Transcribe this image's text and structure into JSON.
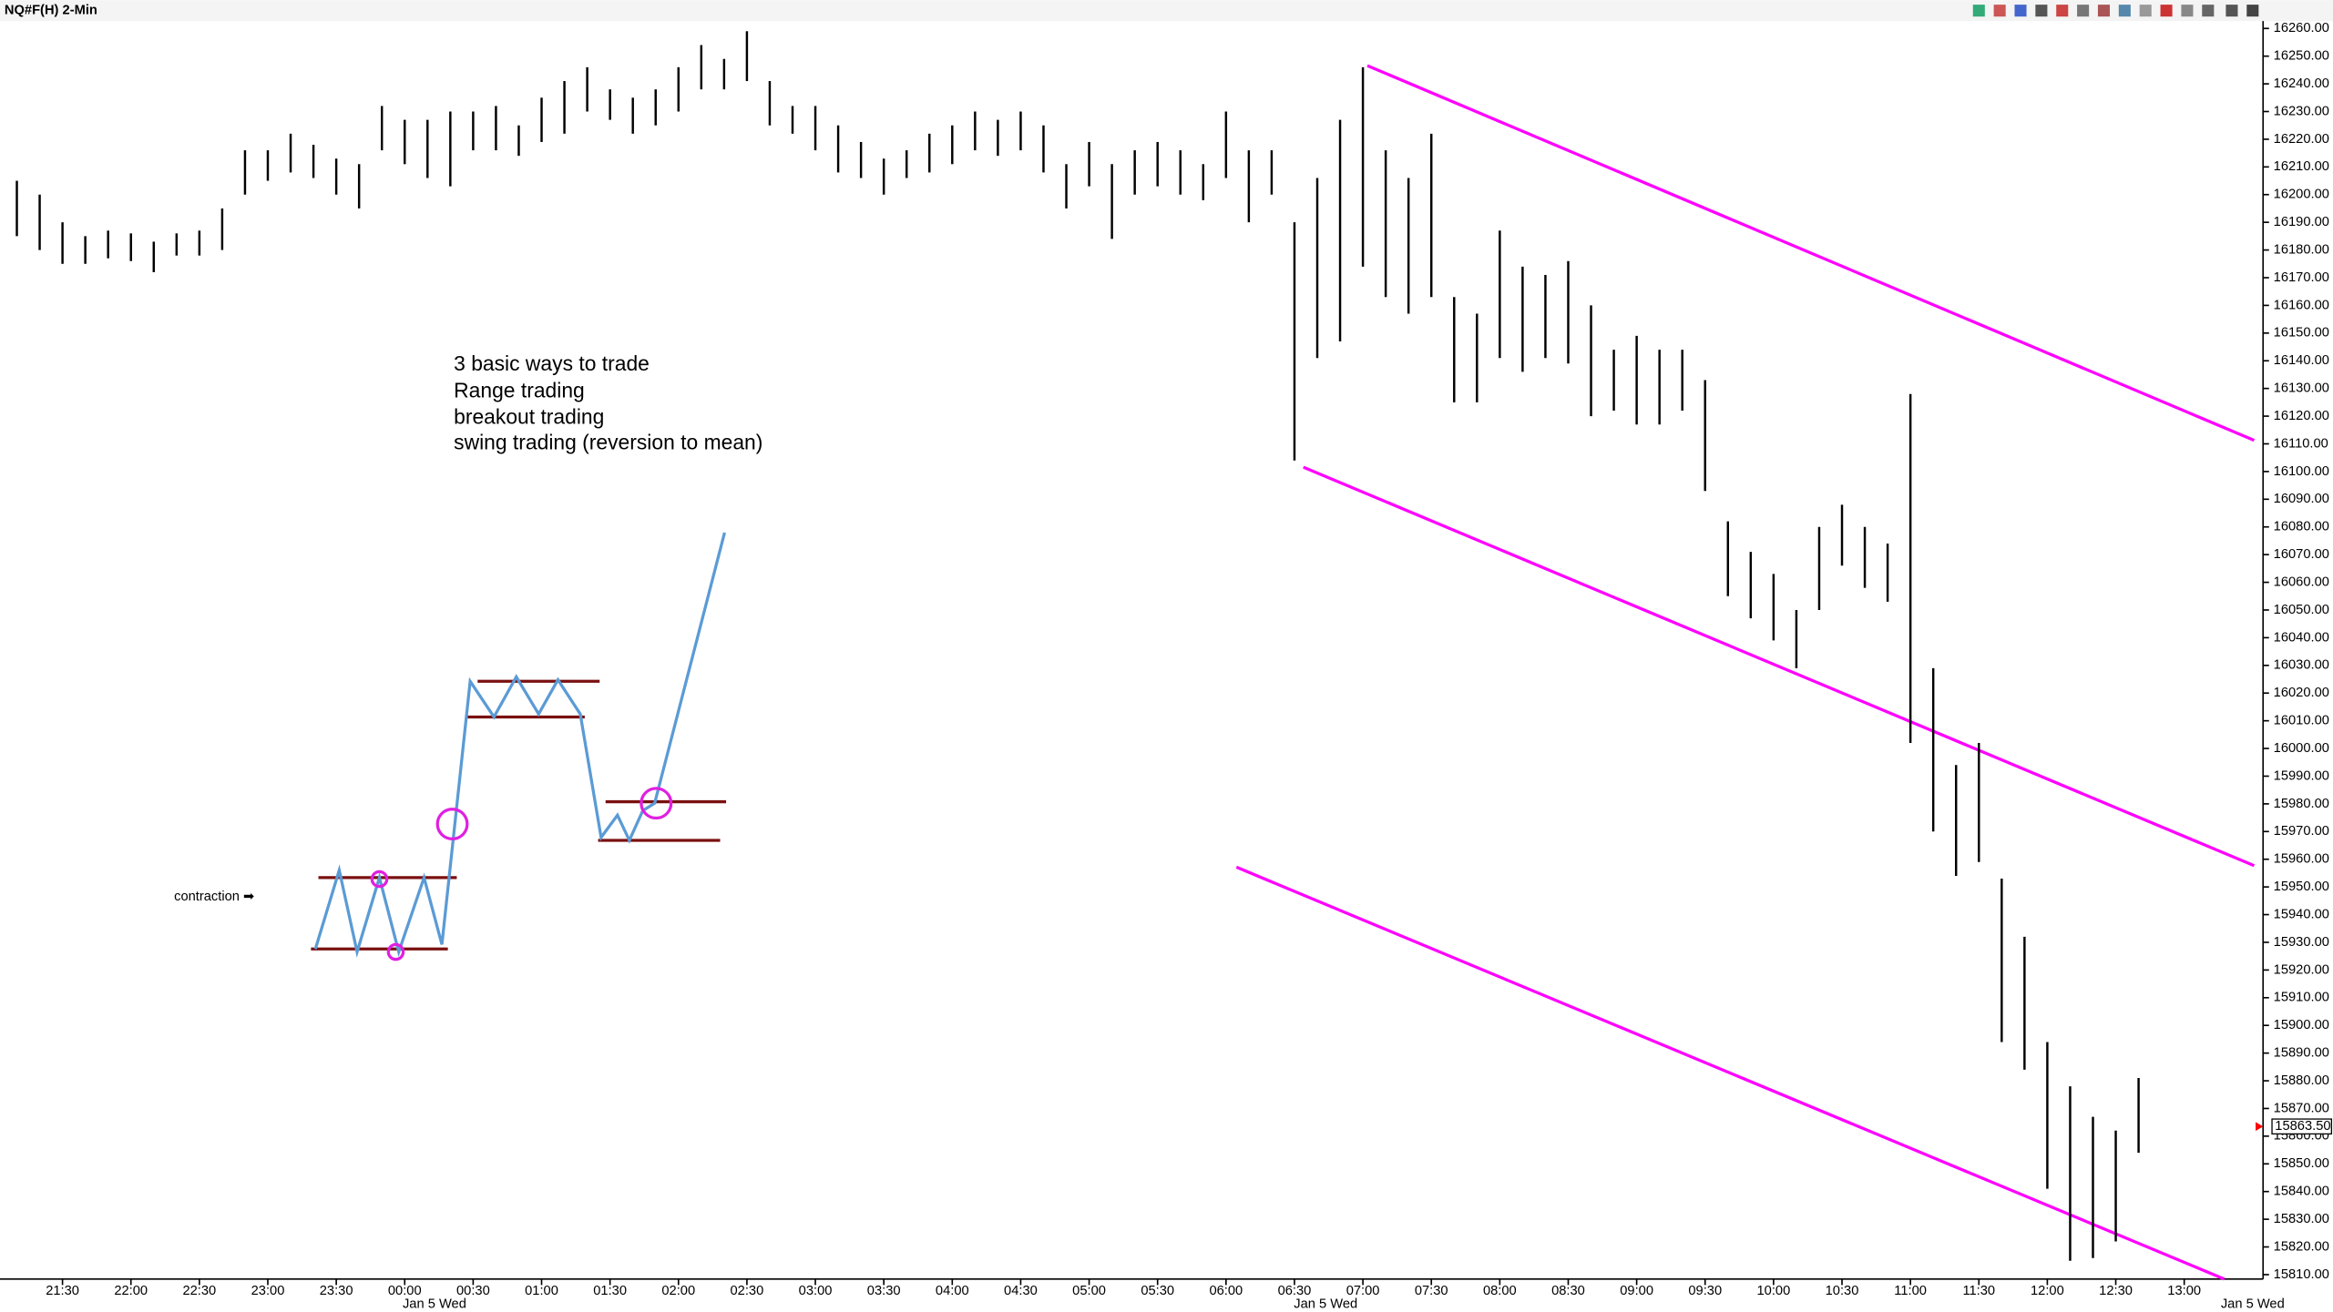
{
  "chart_data": {
    "type": "range-bar",
    "title": "NQ#F(H) 2-Min",
    "categories": [
      "21:10",
      "21:20",
      "21:30",
      "21:40",
      "21:50",
      "22:00",
      "22:10",
      "22:20",
      "22:30",
      "22:40",
      "22:50",
      "23:00",
      "23:10",
      "23:20",
      "23:30",
      "23:40",
      "23:50",
      "00:00",
      "00:10",
      "00:20",
      "00:30",
      "00:40",
      "00:50",
      "01:00",
      "01:10",
      "01:20",
      "01:30",
      "01:40",
      "01:50",
      "02:00",
      "02:10",
      "02:20",
      "02:30",
      "02:40",
      "02:50",
      "03:00",
      "03:10",
      "03:20",
      "03:30",
      "03:40",
      "03:50",
      "04:00",
      "04:10",
      "04:20",
      "04:30",
      "04:40",
      "04:50",
      "05:00",
      "05:10",
      "05:20",
      "05:30",
      "05:40",
      "05:50",
      "06:00",
      "06:10",
      "06:20",
      "06:30",
      "06:40",
      "06:50",
      "07:00",
      "07:10",
      "07:20",
      "07:30",
      "07:40",
      "07:50",
      "08:00",
      "08:10",
      "08:20",
      "08:30",
      "08:40",
      "08:50",
      "09:00",
      "09:10",
      "09:20",
      "09:30",
      "09:40",
      "09:50",
      "10:00",
      "10:10",
      "10:20",
      "10:30",
      "10:40",
      "10:50",
      "11:00",
      "11:10",
      "11:20",
      "11:30",
      "11:40",
      "11:50",
      "12:00",
      "12:10",
      "12:20",
      "12:30",
      "12:40"
    ],
    "high": [
      16205,
      16200,
      16190,
      16185,
      16187,
      16186,
      16183,
      16186,
      16187,
      16195,
      16216,
      16216,
      16222,
      16218,
      16213,
      16211,
      16232,
      16227,
      16227,
      16230,
      16230,
      16232,
      16225,
      16235,
      16241,
      16246,
      16238,
      16235,
      16238,
      16246,
      16254,
      16249,
      16259,
      16241,
      16232,
      16232,
      16225,
      16219,
      16213,
      16216,
      16222,
      16225,
      16230,
      16227,
      16230,
      16225,
      16211,
      16219,
      16211,
      16216,
      16219,
      16216,
      16211,
      16230,
      16216,
      16216,
      16190,
      16206,
      16227,
      16246,
      16216,
      16206,
      16222,
      16163,
      16157,
      16187,
      16174,
      16171,
      16176,
      16160,
      16144,
      16149,
      16144,
      16144,
      16133,
      16082,
      16071,
      16063,
      16050,
      16080,
      16088,
      16080,
      16074,
      16128,
      16029,
      15994,
      16002,
      15953,
      15932,
      15894,
      15878,
      15867,
      15862,
      15881
    ],
    "low": [
      16185,
      16180,
      16175,
      16175,
      16177,
      16176,
      16172,
      16178,
      16178,
      16180,
      16200,
      16205,
      16208,
      16206,
      16200,
      16195,
      16216,
      16211,
      16206,
      16203,
      16216,
      16216,
      16214,
      16219,
      16222,
      16230,
      16227,
      16222,
      16225,
      16230,
      16238,
      16238,
      16241,
      16225,
      16222,
      16216,
      16208,
      16206,
      16200,
      16206,
      16208,
      16211,
      16216,
      16214,
      16216,
      16208,
      16195,
      16203,
      16184,
      16200,
      16203,
      16200,
      16198,
      16206,
      16190,
      16200,
      16104,
      16141,
      16147,
      16174,
      16163,
      16157,
      16163,
      16125,
      16125,
      16141,
      16136,
      16141,
      16139,
      16120,
      16122,
      16117,
      16117,
      16122,
      16093,
      16055,
      16047,
      16039,
      16029,
      16050,
      16066,
      16058,
      16053,
      16002,
      15970,
      15954,
      15959,
      15894,
      15884,
      15841,
      15815,
      15816,
      15822,
      15854
    ],
    "color": "#000000",
    "ylim": [
      15810,
      16260
    ],
    "yticks": [
      {
        "value": 16260,
        "label": "16260.00"
      },
      {
        "value": 16250,
        "label": "16250.00"
      },
      {
        "value": 16240,
        "label": "16240.00"
      },
      {
        "value": 16230,
        "label": "16230.00"
      },
      {
        "value": 16220,
        "label": "16220.00"
      },
      {
        "value": 16210,
        "label": "16210.00"
      },
      {
        "value": 16200,
        "label": "16200.00"
      },
      {
        "value": 16190,
        "label": "16190.00"
      },
      {
        "value": 16180,
        "label": "16180.00"
      },
      {
        "value": 16170,
        "label": "16170.00"
      },
      {
        "value": 16160,
        "label": "16160.00"
      },
      {
        "value": 16150,
        "label": "16150.00"
      },
      {
        "value": 16140,
        "label": "16140.00"
      },
      {
        "value": 16130,
        "label": "16130.00"
      },
      {
        "value": 16120,
        "label": "16120.00"
      },
      {
        "value": 16110,
        "label": "16110.00"
      },
      {
        "value": 16100,
        "label": "16100.00"
      },
      {
        "value": 16090,
        "label": "16090.00"
      },
      {
        "value": 16080,
        "label": "16080.00"
      },
      {
        "value": 16070,
        "label": "16070.00"
      },
      {
        "value": 16060,
        "label": "16060.00"
      },
      {
        "value": 16050,
        "label": "16050.00"
      },
      {
        "value": 16040,
        "label": "16040.00"
      },
      {
        "value": 16030,
        "label": "16030.00"
      },
      {
        "value": 16020,
        "label": "16020.00"
      },
      {
        "value": 16010,
        "label": "16010.00"
      },
      {
        "value": 16000,
        "label": "16000.00"
      },
      {
        "value": 15990,
        "label": "15990.00"
      },
      {
        "value": 15980,
        "label": "15980.00"
      },
      {
        "value": 15970,
        "label": "15970.00"
      },
      {
        "value": 15960,
        "label": "15960.00"
      },
      {
        "value": 15950,
        "label": "15950.00"
      },
      {
        "value": 15940,
        "label": "15940.00"
      },
      {
        "value": 15930,
        "label": "15930.00"
      },
      {
        "value": 15920,
        "label": "15920.00"
      },
      {
        "value": 15910,
        "label": "15910.00"
      },
      {
        "value": 15900,
        "label": "15900.00"
      },
      {
        "value": 15890,
        "label": "15890.00"
      },
      {
        "value": 15880,
        "label": "15880.00"
      },
      {
        "value": 15870,
        "label": "15870.00"
      },
      {
        "value": 15860,
        "label": "15860.00"
      },
      {
        "value": 15850,
        "label": "15850.00"
      },
      {
        "value": 15840,
        "label": "15840.00"
      },
      {
        "value": 15830,
        "label": "15830.00"
      },
      {
        "value": 15820,
        "label": "15820.00"
      },
      {
        "value": 15810,
        "label": "15810.00"
      }
    ],
    "xticks": [
      "21:30",
      "22:00",
      "22:30",
      "23:00",
      "23:30",
      "00:00",
      "00:30",
      "01:00",
      "01:30",
      "02:00",
      "02:30",
      "03:00",
      "03:30",
      "04:00",
      "04:30",
      "05:00",
      "05:30",
      "06:00",
      "06:30",
      "07:00",
      "07:30",
      "08:00",
      "08:30",
      "09:00",
      "09:30",
      "10:00",
      "10:30",
      "11:00",
      "11:30",
      "12:00",
      "12:30",
      "13:00"
    ],
    "date_label": "Jan 5 Wed",
    "last_price": {
      "value": 15863.5,
      "label": "15863.50"
    },
    "annotations": [
      "3 basic ways to trade",
      "Range trading",
      "breakout trading",
      "swing trading (reversion to mean)",
      "contraction ➡"
    ]
  }
}
